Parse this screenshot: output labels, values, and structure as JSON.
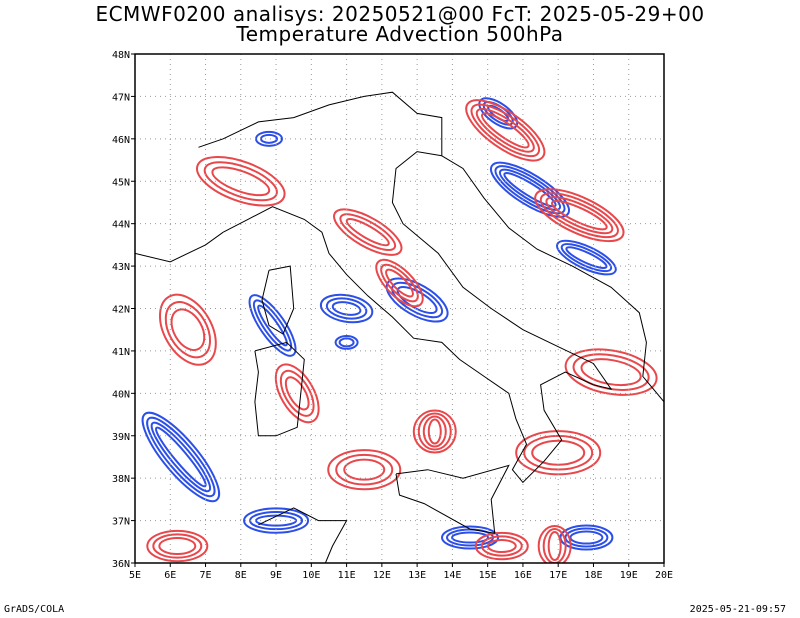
{
  "title_line1": "ECMWF0200 analisys: 20250521@00 FcT: 2025-05-29+00",
  "title_line2": "Temperature Advection 500hPa",
  "footer_left": "GrADS/COLA",
  "footer_right": "2025-05-21-09:57",
  "colors": {
    "positive_contour": "#e8474b",
    "negative_contour": "#2b4fe8",
    "coastline": "#000000",
    "grid": "#999999"
  },
  "map": {
    "lon_range": [
      5,
      20
    ],
    "lat_range": [
      36,
      48
    ],
    "lon_ticks": [
      "5E",
      "6E",
      "7E",
      "8E",
      "9E",
      "10E",
      "11E",
      "12E",
      "13E",
      "14E",
      "15E",
      "16E",
      "17E",
      "18E",
      "19E",
      "20E"
    ],
    "lat_ticks": [
      "36N",
      "37N",
      "38N",
      "39N",
      "40N",
      "41N",
      "42N",
      "43N",
      "44N",
      "45N",
      "46N",
      "47N",
      "48N"
    ],
    "grid_lines": "dotted"
  }
}
